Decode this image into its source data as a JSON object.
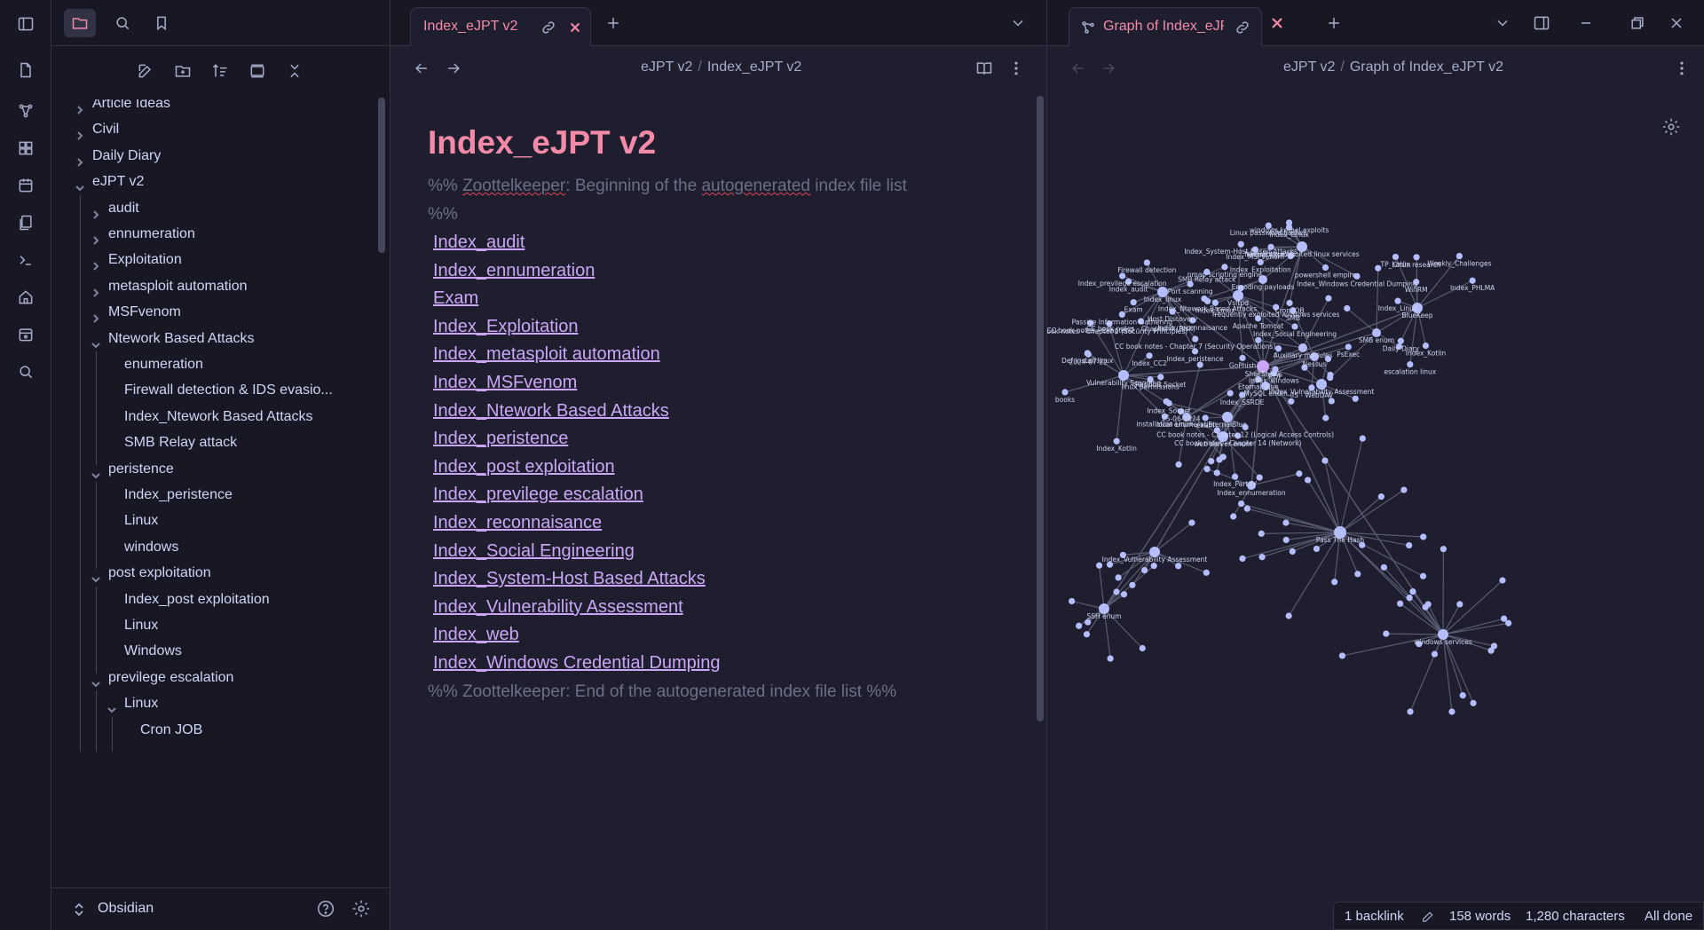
{
  "sidebar": {
    "tree": [
      {
        "label": "Article Ideas",
        "depth": 0,
        "expanded": false,
        "folder": true
      },
      {
        "label": "Civil",
        "depth": 0,
        "expanded": false,
        "folder": true
      },
      {
        "label": "Daily Diary",
        "depth": 0,
        "expanded": false,
        "folder": true
      },
      {
        "label": "eJPT v2",
        "depth": 0,
        "expanded": true,
        "folder": true
      },
      {
        "label": "audit",
        "depth": 1,
        "expanded": false,
        "folder": true
      },
      {
        "label": "ennumeration",
        "depth": 1,
        "expanded": false,
        "folder": true
      },
      {
        "label": "Exploitation",
        "depth": 1,
        "expanded": false,
        "folder": true
      },
      {
        "label": "metasploit automation",
        "depth": 1,
        "expanded": false,
        "folder": true
      },
      {
        "label": "MSFvenom",
        "depth": 1,
        "expanded": false,
        "folder": true
      },
      {
        "label": "Ntework Based Attacks",
        "depth": 1,
        "expanded": true,
        "folder": true
      },
      {
        "label": "enumeration",
        "depth": 2,
        "folder": false
      },
      {
        "label": "Firewall detection & IDS evasio...",
        "depth": 2,
        "folder": false
      },
      {
        "label": "Index_Ntework Based Attacks",
        "depth": 2,
        "folder": false
      },
      {
        "label": "SMB Relay attack",
        "depth": 2,
        "folder": false
      },
      {
        "label": "peristence",
        "depth": 1,
        "expanded": true,
        "folder": true
      },
      {
        "label": "Index_peristence",
        "depth": 2,
        "folder": false
      },
      {
        "label": "Linux",
        "depth": 2,
        "folder": false
      },
      {
        "label": "windows",
        "depth": 2,
        "folder": false
      },
      {
        "label": "post exploitation",
        "depth": 1,
        "expanded": true,
        "folder": true
      },
      {
        "label": "Index_post exploitation",
        "depth": 2,
        "folder": false
      },
      {
        "label": "Linux",
        "depth": 2,
        "folder": false
      },
      {
        "label": "Windows",
        "depth": 2,
        "folder": false
      },
      {
        "label": "previlege escalation",
        "depth": 1,
        "expanded": true,
        "folder": true
      },
      {
        "label": "Linux",
        "depth": 2,
        "expanded": true,
        "folder": true
      },
      {
        "label": "Cron JOB",
        "depth": 3,
        "folder": false
      }
    ],
    "vault_name": "Obsidian"
  },
  "left_pane": {
    "tab_title": "Index_eJPT v2",
    "breadcrumb": [
      "eJPT v2",
      "Index_eJPT v2"
    ],
    "doc_title": "Index_eJPT v2",
    "comment_start_a": "%% ",
    "comment_start_b": "Zoottelkeeper",
    "comment_start_c": ": Beginning of the ",
    "comment_start_d": "autogenerated",
    "comment_start_e": " index file list",
    "comment_start_f": "%%",
    "links": [
      "Index_audit",
      "Index_ennumeration",
      "Exam",
      "Index_Exploitation",
      "Index_metasploit automation",
      "Index_MSFvenom",
      "Index_Ntework Based Attacks",
      "Index_peristence",
      "Index_post exploitation",
      "Index_previlege escalation",
      "Index_reconnaisance",
      "Index_Social Engineering",
      "Index_System-Host Based Attacks",
      "Index_Vulnerability Assessment",
      "Index_web",
      "Index_Windows Credential Dumping"
    ],
    "comment_end": "%% Zoottelkeeper: End of the autogenerated index file list  %%"
  },
  "right_pane": {
    "tab_title": "Graph of Index_eJP...",
    "breadcrumb": [
      "eJPT v2",
      "Graph of Index_eJPT v2"
    ],
    "graph_labels": [
      "ShellShock",
      "frequently exploited linux services",
      "Index_linux",
      "Vsftpd",
      "Nessus",
      "BlueKeep",
      "Vulnerability Scanning",
      "EternalBlue",
      "Index_Vulnerability Assessment",
      "Pass The Hash",
      "windows services",
      "Index_Vulnerability Assessment",
      "SSH enum",
      "MySQL enum",
      "web server enum",
      "local enumeration",
      "Index_ennumeration",
      "Auxiliary modules",
      "SMB enum",
      "Encoding payloads",
      "Index_MSFvenom",
      "powershell empire",
      "Index_Exploitation",
      "Index_Windows Credential Dumping",
      "Linux password hashes",
      "Cron JOB",
      "Index_Linux",
      "Kernel exploits",
      "windows kernel exploits",
      "Index_previlege escalation",
      "Host Discovery",
      "nmap scripting engine",
      "Index_reconnaisance",
      "Port scanning",
      "Passive Information Gathering",
      "Firewall detection",
      "Index_peristence",
      "Exam",
      "Index_audit",
      "CC book notes - Chapter 7 (Security Operations)",
      "CC book notes - Chapter 4 (Risk)",
      "Index_Social Engineering",
      "GoPhish",
      "Index_Ntework Based Attacks",
      "SMB Relay attack",
      "Index_System-Host Based Attacks",
      "Apache Tomcat",
      "Index_Linux",
      "frequently exploited windows services",
      "SMB",
      "PsExec",
      "Index_windows",
      "Eternal Blue",
      "RDP",
      "IIS - WebDAV",
      "WinRM",
      "escalation linux",
      "Weekly_Challenges",
      "Index_PHLMA",
      "Linux research",
      "Index_Linux",
      "Daily Diary",
      "Index_Kotlin",
      "TP_Kotlin",
      "Index_Kotlin",
      "Rapport Socket",
      "2024-07-22",
      "25-06-2024",
      "books",
      "Def install linux",
      "installation Linux",
      "Index_CC2",
      "linux permissions",
      "CC book notes - Chapter 1 (Security Principles)",
      "CC book notes - Chapter 2",
      "Index_Part IV",
      "CC book notes - Chapter 14 (Network)",
      "CC book notes - Chapter 12 (Logical Access Controls)",
      "Index_Socket",
      "Index_SSRDE",
      "exam"
    ]
  },
  "status_bar": {
    "backlinks": "1 backlink",
    "words": "158 words",
    "characters": "1,280 characters",
    "sync": "All done"
  },
  "colors": {
    "accent": "#f38ba8",
    "link": "#cba6f7",
    "graph_node": "#b4befe",
    "graph_active": "#cba6f7",
    "background": "#1e1e2e"
  }
}
